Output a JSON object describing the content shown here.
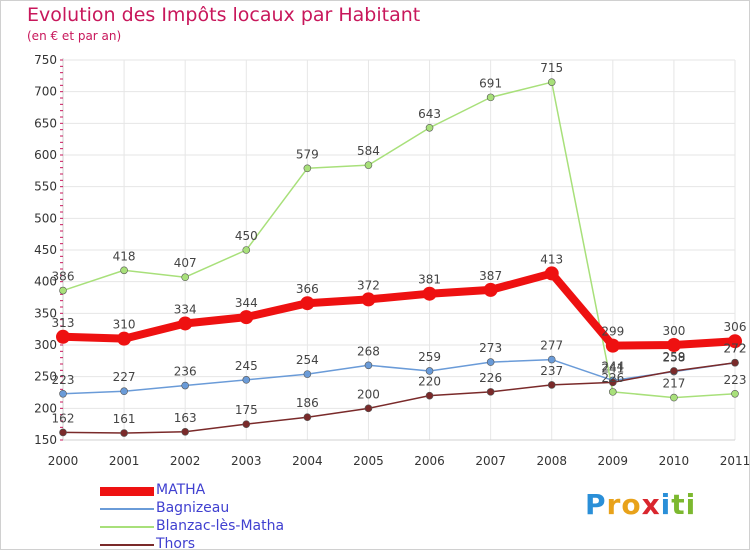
{
  "title": "Evolution des Impôts locaux par Habitant",
  "subtitle": "(en € et par an)",
  "logo": {
    "letters": [
      "P",
      "r",
      "o",
      "x",
      "i",
      "t",
      "i"
    ],
    "colors": [
      "#2a8fd8",
      "#e8a21a",
      "#e8a21a",
      "#d9262e",
      "#2a8fd8",
      "#7cb82f",
      "#7cb82f"
    ]
  },
  "chart_data": {
    "type": "line",
    "x": [
      "2000",
      "2001",
      "2002",
      "2003",
      "2004",
      "2005",
      "2006",
      "2007",
      "2008",
      "2009",
      "2010",
      "2011"
    ],
    "ylim": [
      150,
      750
    ],
    "yticks": [
      150,
      200,
      250,
      300,
      350,
      400,
      450,
      500,
      550,
      600,
      650,
      700,
      750
    ],
    "grid": true,
    "legend_position": "bottom-left",
    "series": [
      {
        "name": "MATHA",
        "color": "#ee1111",
        "values": [
          313,
          310,
          334,
          344,
          366,
          372,
          381,
          387,
          413,
          299,
          300,
          306
        ]
      },
      {
        "name": "Bagnizeau",
        "color": "#6a9bd8",
        "values": [
          223,
          227,
          236,
          245,
          254,
          268,
          259,
          273,
          277,
          244,
          258,
          272
        ]
      },
      {
        "name": "Blanzac-lès-Matha",
        "color": "#a8e07a",
        "values": [
          386,
          418,
          407,
          450,
          579,
          584,
          643,
          691,
          715,
          226,
          217,
          223
        ]
      },
      {
        "name": "Thors",
        "color": "#7a2a2a",
        "values": [
          162,
          161,
          163,
          175,
          186,
          200,
          220,
          226,
          237,
          241,
          259,
          272
        ]
      }
    ]
  }
}
